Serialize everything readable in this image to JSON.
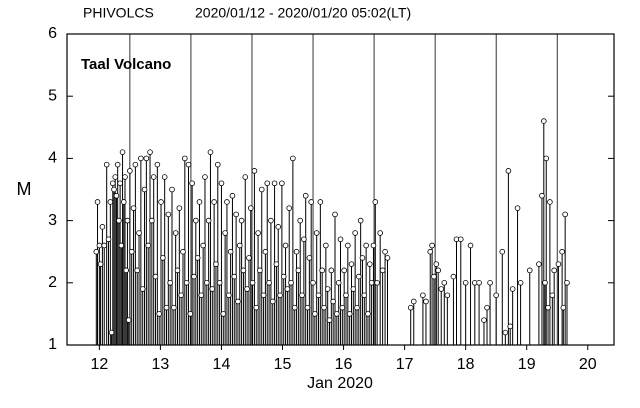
{
  "chart_data": {
    "type": "stem",
    "source": "PHIVOLCS",
    "title": "2020/01/12 - 2020/01/20 05:02(LT)",
    "annotation": "Taal Volcano",
    "y_label": "M",
    "x_label": "Jan 2020",
    "color": "#000000",
    "marker_fill": "#ffffff",
    "xlim": [
      11.97,
      20.93
    ],
    "ylim": [
      1,
      6
    ],
    "yticks": [
      1,
      2,
      3,
      4,
      5,
      6
    ],
    "xticks": [
      {
        "value": 12.5,
        "label": "12"
      },
      {
        "value": 13.5,
        "label": "13"
      },
      {
        "value": 14.5,
        "label": "14"
      },
      {
        "value": 15.5,
        "label": "15"
      },
      {
        "value": 16.5,
        "label": "16"
      },
      {
        "value": 17.5,
        "label": "17"
      },
      {
        "value": 18.5,
        "label": "18"
      },
      {
        "value": 19.5,
        "label": "19"
      },
      {
        "value": 20.5,
        "label": "20"
      }
    ],
    "xgrid": [
      13,
      14,
      15,
      16,
      17,
      18,
      19,
      20
    ],
    "x": [
      12.45,
      12.47,
      12.5,
      12.52,
      12.55,
      12.58,
      12.62,
      12.65,
      12.68,
      12.7,
      12.72,
      12.74,
      12.76,
      12.78,
      12.8,
      12.82,
      12.84,
      12.86,
      12.88,
      12.9,
      12.92,
      12.94,
      12.96,
      12.98,
      13.0,
      13.03,
      13.06,
      13.09,
      13.12,
      13.15,
      13.18,
      13.21,
      13.24,
      13.27,
      13.3,
      13.33,
      13.36,
      13.39,
      13.42,
      13.45,
      13.48,
      13.51,
      13.54,
      13.57,
      13.6,
      13.63,
      13.66,
      13.69,
      13.72,
      13.75,
      13.78,
      13.81,
      13.84,
      13.87,
      13.9,
      13.93,
      13.96,
      13.99,
      14.02,
      14.05,
      14.08,
      14.11,
      14.14,
      14.17,
      14.2,
      14.23,
      14.26,
      14.29,
      14.32,
      14.35,
      14.38,
      14.41,
      14.44,
      14.47,
      14.5,
      14.53,
      14.56,
      14.59,
      14.62,
      14.65,
      14.68,
      14.71,
      14.74,
      14.77,
      14.8,
      14.83,
      14.86,
      14.89,
      14.92,
      14.95,
      14.98,
      15.01,
      15.04,
      15.07,
      15.1,
      15.13,
      15.16,
      15.19,
      15.22,
      15.25,
      15.28,
      15.31,
      15.34,
      15.37,
      15.4,
      15.43,
      15.46,
      15.49,
      15.52,
      15.55,
      15.58,
      15.61,
      15.64,
      15.67,
      15.7,
      15.73,
      15.76,
      15.79,
      15.82,
      15.85,
      15.88,
      15.91,
      15.94,
      15.97,
      16.0,
      16.03,
      16.06,
      16.09,
      16.12,
      16.15,
      16.18,
      16.21,
      16.24,
      16.27,
      16.3,
      16.33,
      16.36,
      16.39,
      16.42,
      16.45,
      16.48,
      16.51,
      16.54,
      16.57,
      16.6,
      16.63,
      16.66,
      16.69,
      16.72,
      16.75,
      16.78,
      16.81,
      16.84,
      16.87,
      16.9,
      16.93,
      16.96,
      16.99,
      17.02,
      17.05,
      17.1,
      17.14,
      17.18,
      17.22,
      17.6,
      17.65,
      17.8,
      17.85,
      17.92,
      17.95,
      17.98,
      18.02,
      18.05,
      18.1,
      18.15,
      18.2,
      18.3,
      18.35,
      18.42,
      18.5,
      18.58,
      18.65,
      18.72,
      18.8,
      18.85,
      18.9,
      19.0,
      19.1,
      19.15,
      19.2,
      19.23,
      19.27,
      19.35,
      19.4,
      19.55,
      19.7,
      19.75,
      19.78,
      19.8,
      19.82,
      19.85,
      19.88,
      19.92,
      19.95,
      20.02,
      20.08,
      20.1,
      20.13,
      20.16
    ],
    "values": [
      2.5,
      3.3,
      2.6,
      2.3,
      2.9,
      2.6,
      3.9,
      2.7,
      3.3,
      1.2,
      3.6,
      3.5,
      3.7,
      3.4,
      3.9,
      3.0,
      3.6,
      2.6,
      4.1,
      3.3,
      3.7,
      2.2,
      3.0,
      1.4,
      3.8,
      2.5,
      3.2,
      3.9,
      2.2,
      2.8,
      4.0,
      1.9,
      3.5,
      4.0,
      2.6,
      4.1,
      3.0,
      3.7,
      2.1,
      3.9,
      1.5,
      3.3,
      2.4,
      3.7,
      1.6,
      3.1,
      2.0,
      3.5,
      1.6,
      2.8,
      2.2,
      3.2,
      1.8,
      2.5,
      4.0,
      2.0,
      3.9,
      1.5,
      3.6,
      2.1,
      3.0,
      2.4,
      3.3,
      1.8,
      2.6,
      3.7,
      2.0,
      3.0,
      4.1,
      1.9,
      3.3,
      2.3,
      3.9,
      2.0,
      3.6,
      1.5,
      2.8,
      3.3,
      1.8,
      2.5,
      3.4,
      2.1,
      3.1,
      1.7,
      2.6,
      3.0,
      2.2,
      3.7,
      1.9,
      2.4,
      3.2,
      2.0,
      3.8,
      1.6,
      2.8,
      2.2,
      3.5,
      1.8,
      2.5,
      3.6,
      2.0,
      3.0,
      1.7,
      3.6,
      2.3,
      2.9,
      1.8,
      3.6,
      2.1,
      2.6,
      1.9,
      3.2,
      2.0,
      4.0,
      1.6,
      2.5,
      2.2,
      3.0,
      1.8,
      2.7,
      3.4,
      1.6,
      2.4,
      3.3,
      2.0,
      1.5,
      2.8,
      1.8,
      3.3,
      2.2,
      1.6,
      2.6,
      1.9,
      1.4,
      2.2,
      1.7,
      3.1,
      1.5,
      2.0,
      2.7,
      1.6,
      2.2,
      1.8,
      2.6,
      1.5,
      2.3,
      1.9,
      2.8,
      1.6,
      2.1,
      3.0,
      2.4,
      1.8,
      2.6,
      1.5,
      2.3,
      2.0,
      2.6,
      3.3,
      2.0,
      2.8,
      2.2,
      2.5,
      2.4,
      1.6,
      1.7,
      1.8,
      1.7,
      2.5,
      2.6,
      2.1,
      2.3,
      2.2,
      1.9,
      2.0,
      1.8,
      2.1,
      2.7,
      2.7,
      2.0,
      2.6,
      2.0,
      2.0,
      1.4,
      1.6,
      2.0,
      1.8,
      2.5,
      1.2,
      3.8,
      1.3,
      1.9,
      3.2,
      2.0,
      2.2,
      2.3,
      3.4,
      4.6,
      2.0,
      4.0,
      1.6,
      3.3,
      1.8,
      2.2,
      2.3,
      2.5,
      1.6,
      3.1,
      2.0
    ]
  }
}
